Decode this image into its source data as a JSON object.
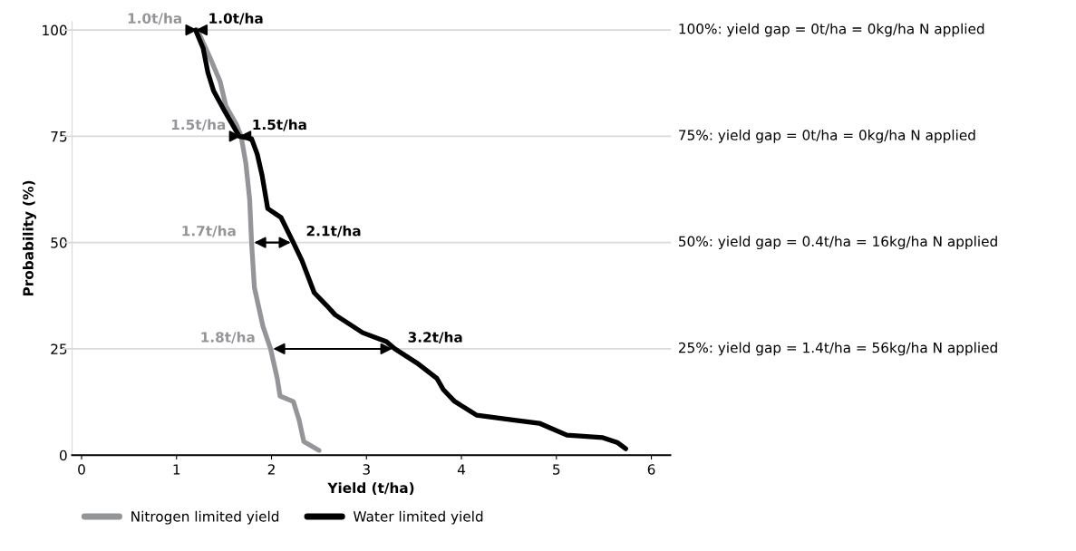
{
  "chart_data": {
    "type": "line",
    "xlabel": "Yield (t/ha)",
    "ylabel": "Probability (%)",
    "xlim": [
      -0.1,
      6.2
    ],
    "xticks": [
      0,
      1,
      2,
      3,
      4,
      5,
      6
    ],
    "ylim": [
      0,
      102
    ],
    "yticks": [
      0,
      25,
      50,
      75,
      100
    ],
    "legend": "bottom left",
    "marker": "none",
    "line_style": "solid",
    "series": [
      {
        "name": "Nitrogen limited yield",
        "color": "#939598",
        "x": [
          1.22,
          1.35,
          1.46,
          1.52,
          1.63,
          1.68,
          1.73,
          1.77,
          1.79,
          1.82,
          1.91,
          1.99,
          2.06,
          2.09,
          2.23,
          2.29,
          2.34,
          2.5
        ],
        "values": [
          100,
          93.6,
          87.8,
          82.1,
          77.8,
          75,
          68.6,
          60.1,
          50,
          39.4,
          30.3,
          25,
          18.1,
          13.9,
          12.6,
          8.3,
          3.2,
          1.1
        ]
      },
      {
        "name": "Water limited yield",
        "color": "#000000",
        "x": [
          1.2,
          1.28,
          1.33,
          1.39,
          1.51,
          1.66,
          1.79,
          1.85,
          1.9,
          1.96,
          2.1,
          2.17,
          2.23,
          2.32,
          2.45,
          2.58,
          2.67,
          2.96,
          3.21,
          3.3,
          3.53,
          3.74,
          3.81,
          3.93,
          4.09,
          4.16,
          4.54,
          4.82,
          5.11,
          5.49,
          5.64,
          5.73
        ],
        "values": [
          100,
          95.7,
          90,
          85.7,
          80.8,
          75,
          74.4,
          70.8,
          65.9,
          58,
          55.9,
          52.7,
          50,
          45.8,
          38.2,
          35.2,
          33,
          28.8,
          26.7,
          25,
          21.7,
          18.1,
          15.4,
          12.6,
          10.4,
          9.4,
          8.3,
          7.5,
          4.7,
          4.1,
          3,
          1.5
        ]
      }
    ],
    "ref_lines": [
      {
        "axis": "y",
        "value": 100,
        "label": "100%: yield gap = 0t/ha = 0kg/ha N applied",
        "color": "#d9d9d9"
      },
      {
        "axis": "y",
        "value": 75,
        "label": "75%: yield gap = 0t/ha = 0kg/ha N applied",
        "color": "#d9d9d9"
      },
      {
        "axis": "y",
        "value": 50,
        "label": "50%: yield gap = 0.4t/ha = 16kg/ha N applied",
        "color": "#d9d9d9"
      },
      {
        "axis": "y",
        "value": 25,
        "label": "25%: yield gap = 1.4t/ha = 56kg/ha N applied",
        "color": "#d9d9d9"
      }
    ],
    "annotations": [
      {
        "text": "1.0t/ha",
        "x": 1.22,
        "y": 100
      },
      {
        "text": "1.0t/ha",
        "x": 1.2,
        "y": 100
      },
      {
        "text": "1.5t/ha",
        "x": 1.68,
        "y": 75
      },
      {
        "text": "1.5t/ha",
        "x": 1.66,
        "y": 75
      },
      {
        "text": "1.7t/ha",
        "x": 1.79,
        "y": 50
      },
      {
        "text": "2.1t/ha",
        "x": 2.23,
        "y": 50
      },
      {
        "text": "1.8t/ha",
        "x": 1.99,
        "y": 25
      },
      {
        "text": "3.2t/ha",
        "x": 3.3,
        "y": 25
      }
    ]
  }
}
